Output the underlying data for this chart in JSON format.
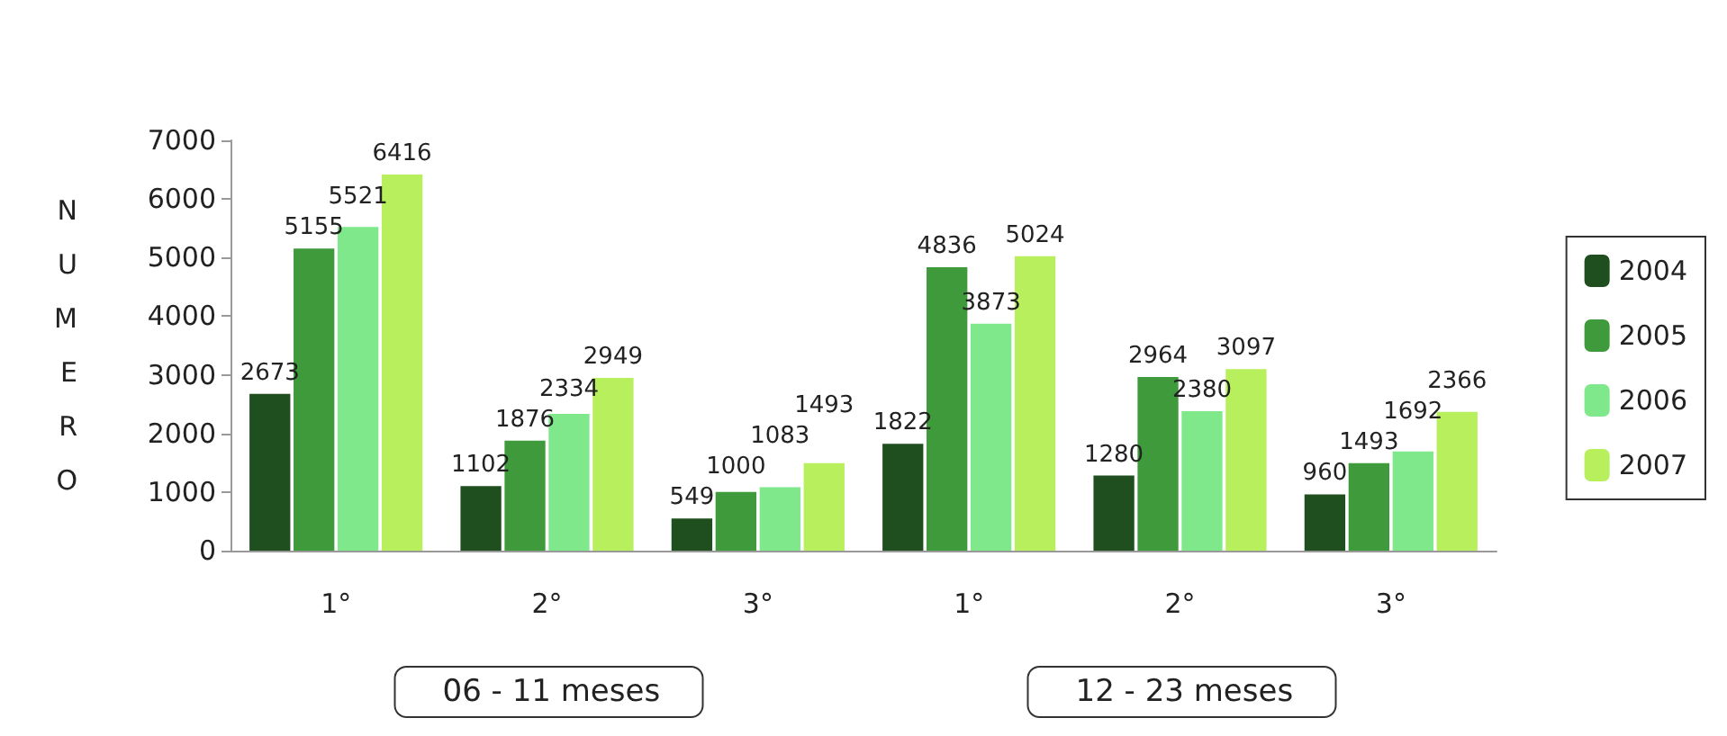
{
  "chart_data": {
    "type": "bar",
    "ylabel": "NUMERO",
    "categories": [
      "1°",
      "2°",
      "3°",
      "1°",
      "2°",
      "3°"
    ],
    "series": [
      {
        "name": "2004",
        "color": "#1f4f1f",
        "values": [
          2673,
          1102,
          549,
          1822,
          1280,
          960
        ]
      },
      {
        "name": "2005",
        "color": "#3e9a3a",
        "values": [
          5155,
          1876,
          1000,
          4836,
          2964,
          1493
        ]
      },
      {
        "name": "2006",
        "color": "#7fe88a",
        "values": [
          5521,
          2334,
          1083,
          3873,
          2380,
          1692
        ]
      },
      {
        "name": "2007",
        "color": "#b8ef5c",
        "values": [
          6416,
          2949,
          1493,
          5024,
          3097,
          2366
        ]
      }
    ],
    "ylim": [
      0,
      7000
    ],
    "yticks": [
      0,
      1000,
      2000,
      3000,
      4000,
      5000,
      6000,
      7000
    ],
    "grid": false,
    "legend": "right",
    "data_labels": true,
    "annotations": [
      "06 - 11 meses",
      "12 - 23 meses"
    ]
  }
}
